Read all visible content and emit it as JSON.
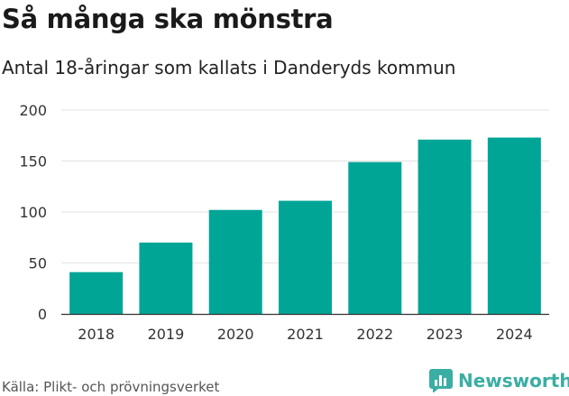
{
  "header": {
    "title": "Så många ska mönstra",
    "subtitle": "Antal 18-åringar som kallats i Danderyds kommun"
  },
  "footer": {
    "source": "Källa: Plikt- och prövningsverket",
    "brand": "Newsworthy",
    "brand_icon": "bar-chart-logo-icon",
    "brand_color": "#3aaea3"
  },
  "chart_data": {
    "type": "bar",
    "title": "Så många ska mönstra",
    "subtitle": "Antal 18-åringar som kallats i Danderyds kommun",
    "xlabel": "",
    "ylabel": "",
    "categories": [
      "2018",
      "2019",
      "2020",
      "2021",
      "2022",
      "2023",
      "2024"
    ],
    "values": [
      41,
      70,
      102,
      111,
      149,
      171,
      173
    ],
    "ylim": [
      0,
      200
    ],
    "yticks": [
      0,
      50,
      100,
      150,
      200
    ],
    "grid": true,
    "bar_color": "#00a596"
  }
}
